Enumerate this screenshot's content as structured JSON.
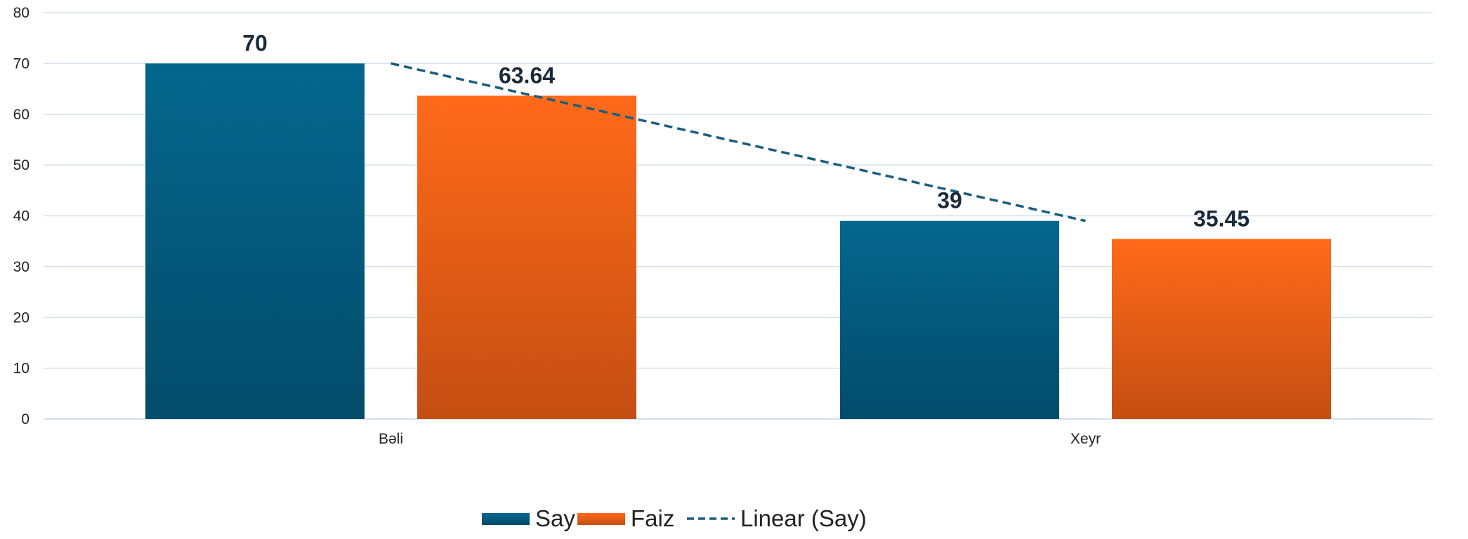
{
  "chart_data": {
    "type": "bar",
    "categories": [
      "Bəli",
      "Xeyr"
    ],
    "series": [
      {
        "name": "Say",
        "values": [
          70,
          39
        ],
        "color": "#05668d",
        "color_dark": "#034c6b"
      },
      {
        "name": "Faiz",
        "values": [
          63.64,
          35.45
        ],
        "color": "#ff6a1a",
        "color_dark": "#c44e12"
      }
    ],
    "trendline": {
      "name": "Linear (Say)",
      "series": "Say",
      "type": "linear",
      "style": "dashed",
      "color": "#1b5e7e"
    },
    "data_labels": [
      "70",
      "63.64",
      "39",
      "35.45"
    ],
    "ylim": [
      0,
      80
    ],
    "yticks": [
      0,
      10,
      20,
      30,
      40,
      50,
      60,
      70,
      80
    ],
    "grid": true,
    "legend": "bottom-center",
    "title": "",
    "xlabel": "",
    "ylabel": ""
  }
}
